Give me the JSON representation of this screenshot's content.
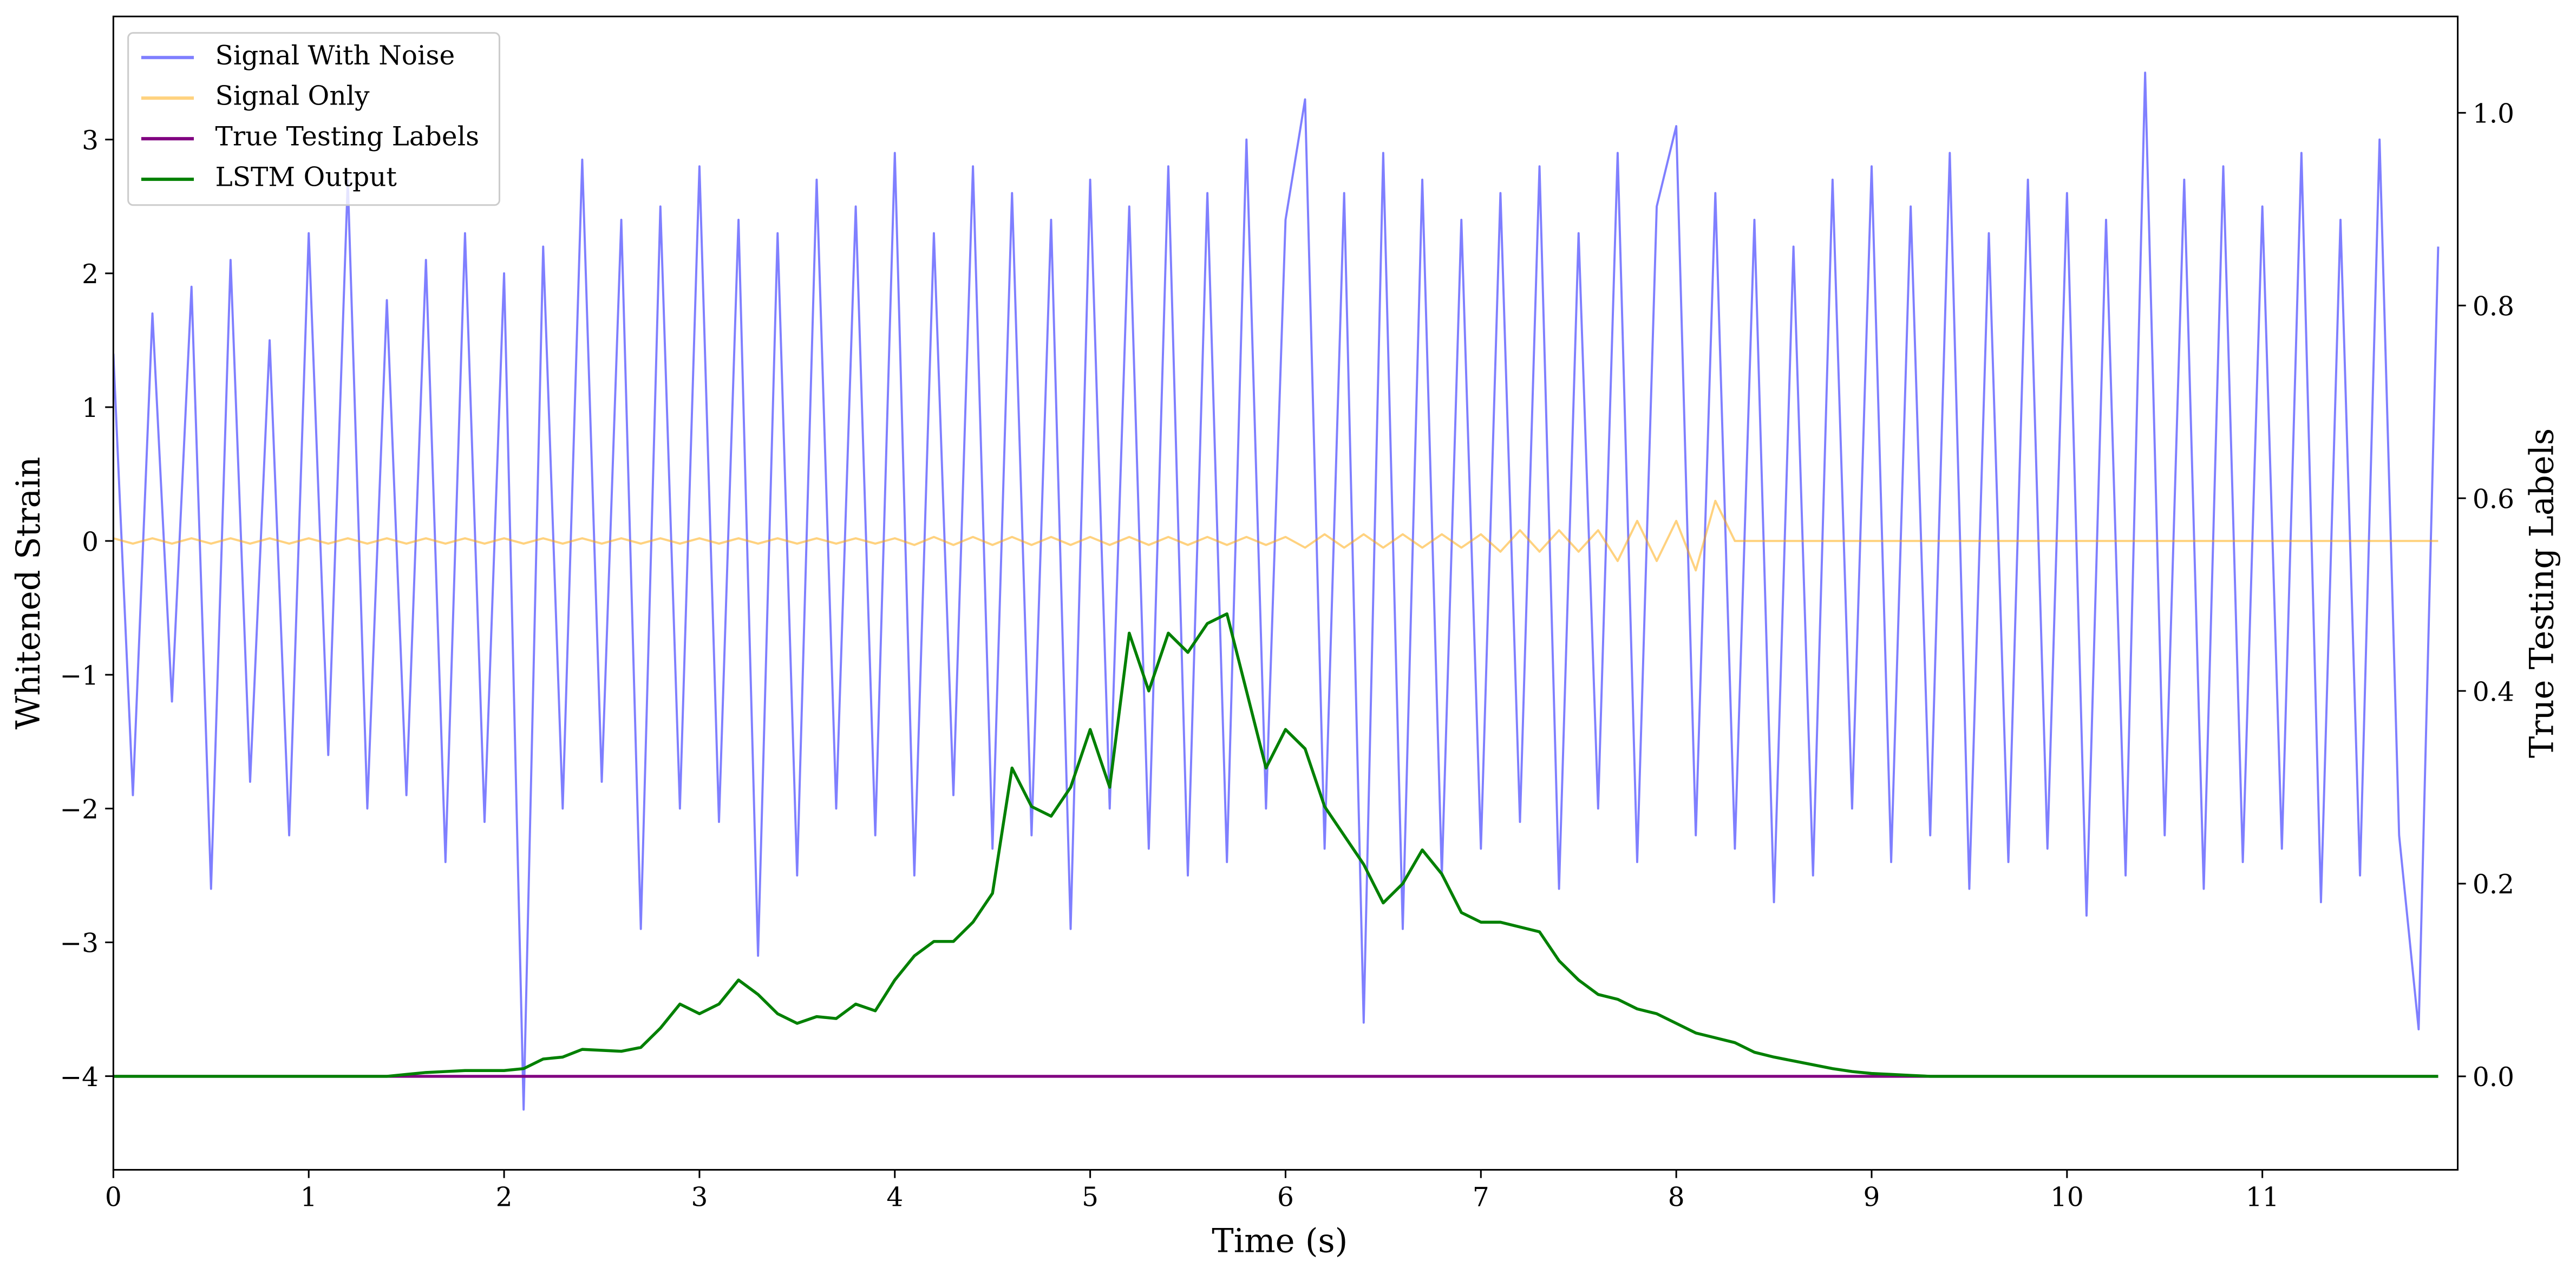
{
  "chart_data": {
    "type": "line",
    "xlabel": "Time (s)",
    "ylabel": "Whitened Strain",
    "y2label": "True Testing Labels",
    "xlim": [
      0,
      12
    ],
    "xticks": [
      0,
      1,
      2,
      3,
      4,
      5,
      6,
      7,
      8,
      9,
      10,
      11
    ],
    "ylim": [
      -4.7,
      3.92
    ],
    "yticks": [
      {
        "value": -4,
        "label": "−4"
      },
      {
        "value": -3,
        "label": "−3"
      },
      {
        "value": -2,
        "label": "−2"
      },
      {
        "value": -1,
        "label": "−1"
      },
      0,
      1,
      2,
      3
    ],
    "y2lim": [
      -0.097,
      1.1
    ],
    "y2ticks": [
      {
        "value": 0,
        "label": "0.0"
      },
      0.2,
      0.4,
      0.6,
      0.8,
      {
        "value": 1,
        "label": "1.0"
      }
    ],
    "legend": "upper left",
    "x": [
      0,
      0.1,
      0.2,
      0.3,
      0.4,
      0.5,
      0.6,
      0.7,
      0.8,
      0.9,
      1,
      1.1,
      1.2,
      1.3,
      1.4,
      1.5,
      1.6,
      1.7,
      1.8,
      1.9,
      2,
      2.1,
      2.2,
      2.3,
      2.4,
      2.5,
      2.6,
      2.7,
      2.8,
      2.9,
      3,
      3.1,
      3.2,
      3.3,
      3.4,
      3.5,
      3.6,
      3.7,
      3.8,
      3.9,
      4,
      4.1,
      4.2,
      4.3,
      4.4,
      4.5,
      4.6,
      4.7,
      4.8,
      4.9,
      5,
      5.1,
      5.2,
      5.3,
      5.4,
      5.5,
      5.6,
      5.7,
      5.8,
      5.9,
      6,
      6.1,
      6.2,
      6.3,
      6.4,
      6.5,
      6.6,
      6.7,
      6.8,
      6.9,
      7,
      7.1,
      7.2,
      7.3,
      7.4,
      7.5,
      7.6,
      7.7,
      7.8,
      7.9,
      8,
      8.1,
      8.2,
      8.3,
      8.4,
      8.5,
      8.6,
      8.7,
      8.8,
      8.9,
      9,
      9.1,
      9.2,
      9.3,
      9.4,
      9.5,
      9.6,
      9.7,
      9.8,
      9.9,
      10,
      10.1,
      10.2,
      10.3,
      10.4,
      10.5,
      10.6,
      10.7,
      10.8,
      10.9,
      11,
      11.1,
      11.2,
      11.3,
      11.4,
      11.5,
      11.6,
      11.7,
      11.8,
      11.9
    ],
    "series": [
      {
        "name": "Signal With Noise",
        "color": "#0000ff",
        "axis": "y",
        "values": [
          1.4,
          -1.9,
          1.7,
          -1.2,
          1.9,
          -2.6,
          2.1,
          -1.8,
          1.5,
          -2.2,
          2.3,
          -1.6,
          2.7,
          -2.0,
          1.8,
          -1.9,
          2.1,
          -2.4,
          2.3,
          -2.1,
          2.0,
          -4.25,
          2.2,
          -2.0,
          2.85,
          -1.8,
          2.4,
          -2.9,
          2.5,
          -2.0,
          2.8,
          -2.1,
          2.4,
          -3.1,
          2.3,
          -2.5,
          2.7,
          -2.0,
          2.5,
          -2.2,
          2.9,
          -2.5,
          2.3,
          -1.9,
          2.8,
          -2.3,
          2.6,
          -2.2,
          2.4,
          -2.9,
          2.7,
          -2.0,
          2.5,
          -2.3,
          2.8,
          -2.5,
          2.6,
          -2.4,
          3.0,
          -2.0,
          2.4,
          3.3,
          -2.3,
          2.6,
          -3.6,
          2.9,
          -2.9,
          2.7,
          -2.5,
          2.4,
          -2.3,
          2.6,
          -2.1,
          2.8,
          -2.6,
          2.3,
          -2.0,
          2.9,
          -2.4,
          2.5,
          3.1,
          -2.2,
          2.6,
          -2.3,
          2.4,
          -2.7,
          2.2,
          -2.5,
          2.7,
          -2.0,
          2.8,
          -2.4,
          2.5,
          -2.2,
          2.9,
          -2.6,
          2.3,
          -2.4,
          2.7,
          -2.3,
          2.6,
          -2.8,
          2.4,
          -2.5,
          3.5,
          -2.2,
          2.7,
          -2.6,
          2.8,
          -2.4,
          2.5,
          -2.3,
          2.9,
          -2.7,
          2.4,
          -2.5,
          3.0,
          -2.2,
          -3.65,
          2.2
        ]
      },
      {
        "name": "Signal Only",
        "color": "#ffa500",
        "axis": "y",
        "values": [
          0.02,
          -0.02,
          0.02,
          -0.02,
          0.02,
          -0.02,
          0.02,
          -0.02,
          0.02,
          -0.02,
          0.02,
          -0.02,
          0.02,
          -0.02,
          0.02,
          -0.02,
          0.02,
          -0.02,
          0.02,
          -0.02,
          0.02,
          -0.02,
          0.02,
          -0.02,
          0.02,
          -0.02,
          0.02,
          -0.02,
          0.02,
          -0.02,
          0.02,
          -0.02,
          0.02,
          -0.02,
          0.02,
          -0.02,
          0.02,
          -0.02,
          0.02,
          -0.02,
          0.02,
          -0.03,
          0.03,
          -0.03,
          0.03,
          -0.03,
          0.03,
          -0.03,
          0.03,
          -0.03,
          0.03,
          -0.03,
          0.03,
          -0.03,
          0.03,
          -0.03,
          0.03,
          -0.03,
          0.03,
          -0.03,
          0.03,
          -0.05,
          0.05,
          -0.05,
          0.05,
          -0.05,
          0.05,
          -0.05,
          0.05,
          -0.05,
          0.05,
          -0.08,
          0.08,
          -0.08,
          0.08,
          -0.08,
          0.08,
          -0.15,
          0.15,
          -0.15,
          0.15,
          -0.22,
          0.3,
          0,
          0,
          0,
          0,
          0,
          0,
          0,
          0,
          0,
          0,
          0,
          0,
          0,
          0,
          0,
          0,
          0,
          0,
          0,
          0,
          0,
          0,
          0,
          0,
          0,
          0,
          0,
          0,
          0,
          0,
          0,
          0,
          0,
          0,
          0,
          0,
          0
        ]
      },
      {
        "name": "True Testing Labels",
        "color": "#800080",
        "axis": "y2",
        "values": [
          0,
          0,
          0,
          0,
          0,
          0,
          0,
          0,
          0,
          0,
          0,
          0,
          0,
          0,
          0,
          0,
          0,
          0,
          0,
          0,
          0,
          0,
          0,
          0,
          0,
          0,
          0,
          0,
          0,
          0,
          0,
          0,
          0,
          0,
          0,
          0,
          0,
          0,
          0,
          0,
          0,
          0,
          0,
          0,
          0,
          0,
          0,
          0,
          0,
          0,
          0,
          0,
          0,
          0,
          0,
          0,
          0,
          0,
          0,
          0,
          0,
          0,
          0,
          0,
          0,
          0,
          0,
          0,
          0,
          0,
          0,
          0,
          0,
          0,
          0,
          0,
          0,
          0,
          0,
          0,
          0,
          0,
          0,
          0,
          0,
          0,
          0,
          0,
          0,
          0,
          0,
          0,
          0,
          0,
          0,
          0,
          0,
          0,
          0,
          0,
          0,
          0,
          0,
          0,
          0,
          0,
          0,
          0,
          0,
          0,
          0,
          0,
          0,
          0,
          0,
          0,
          0,
          0,
          0,
          0
        ]
      },
      {
        "name": "LSTM Output",
        "color": "#008000",
        "axis": "y2",
        "values": [
          0,
          0,
          0,
          0,
          0,
          0,
          0,
          0,
          0,
          0,
          0,
          0,
          0,
          0,
          0,
          0.002,
          0.004,
          0.005,
          0.006,
          0.006,
          0.006,
          0.008,
          0.018,
          0.02,
          0.028,
          0.027,
          0.026,
          0.03,
          0.05,
          0.075,
          0.065,
          0.075,
          0.1,
          0.085,
          0.065,
          0.055,
          0.062,
          0.06,
          0.075,
          0.068,
          0.1,
          0.125,
          0.14,
          0.14,
          0.16,
          0.19,
          0.32,
          0.28,
          0.27,
          0.3,
          0.36,
          0.3,
          0.46,
          0.4,
          0.46,
          0.44,
          0.47,
          0.48,
          0.4,
          0.32,
          0.36,
          0.34,
          0.28,
          0.25,
          0.22,
          0.18,
          0.2,
          0.235,
          0.21,
          0.17,
          0.16,
          0.16,
          0.155,
          0.15,
          0.12,
          0.1,
          0.085,
          0.08,
          0.07,
          0.065,
          0.055,
          0.045,
          0.04,
          0.035,
          0.025,
          0.02,
          0.016,
          0.012,
          0.008,
          0.005,
          0.003,
          0.002,
          0.001,
          0,
          0,
          0,
          0,
          0,
          0,
          0,
          0,
          0,
          0,
          0,
          0,
          0,
          0,
          0,
          0,
          0,
          0,
          0,
          0,
          0,
          0,
          0,
          0,
          0,
          0,
          0
        ]
      }
    ]
  }
}
